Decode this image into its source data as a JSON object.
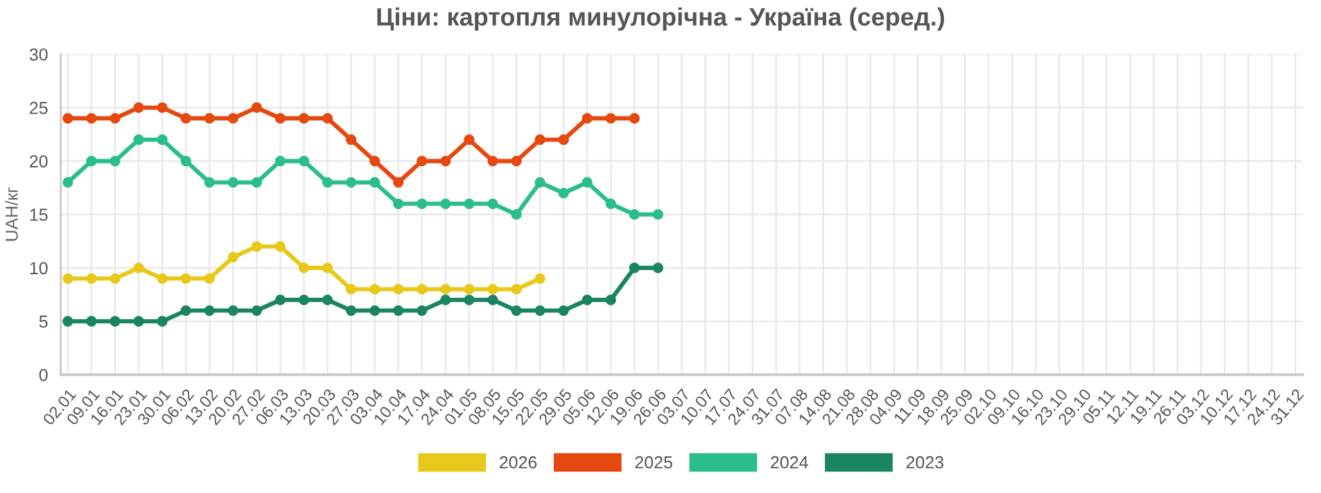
{
  "chart_data": {
    "type": "line",
    "title": "Ціни: картопля минулорічна - Україна (серед.)",
    "ylabel": "UAH/кг",
    "categories": [
      "02.01",
      "09.01",
      "16.01",
      "23.01",
      "30.01",
      "06.02",
      "13.02",
      "20.02",
      "27.02",
      "06.03",
      "13.03",
      "20.03",
      "27.03",
      "03.04",
      "10.04",
      "17.04",
      "24.04",
      "01.05",
      "08.05",
      "15.05",
      "22.05",
      "29.05",
      "05.06",
      "12.06",
      "19.06",
      "26.06",
      "03.07",
      "10.07",
      "17.07",
      "24.07",
      "31.07",
      "07.08",
      "14.08",
      "21.08",
      "28.08",
      "04.09",
      "11.09",
      "18.09",
      "25.09",
      "02.10",
      "09.10",
      "16.10",
      "23.10",
      "29.10",
      "05.11",
      "12.11",
      "19.11",
      "26.11",
      "03.12",
      "10.12",
      "17.12",
      "24.12",
      "31.12"
    ],
    "series": [
      {
        "name": "2026",
        "color": "#e8c81a",
        "values": [
          9,
          9,
          9,
          10,
          9,
          9,
          9,
          11,
          12,
          12,
          10,
          10,
          8,
          8,
          8,
          8,
          8,
          8,
          8,
          8,
          9,
          null,
          null,
          null,
          null,
          null,
          null,
          null,
          null,
          null,
          null,
          null,
          null,
          null,
          null,
          null,
          null,
          null,
          null,
          null,
          null,
          null,
          null,
          null,
          null,
          null,
          null,
          null,
          null,
          null,
          null,
          null,
          null
        ]
      },
      {
        "name": "2025",
        "color": "#e5490f",
        "values": [
          24,
          24,
          24,
          25,
          25,
          24,
          24,
          24,
          25,
          24,
          24,
          24,
          22,
          20,
          18,
          20,
          20,
          22,
          20,
          20,
          22,
          22,
          24,
          24,
          24,
          null,
          null,
          null,
          null,
          null,
          null,
          null,
          null,
          null,
          null,
          null,
          null,
          null,
          null,
          null,
          null,
          null,
          null,
          null,
          null,
          null,
          null,
          null,
          null,
          null,
          null,
          null,
          null
        ]
      },
      {
        "name": "2024",
        "color": "#2bbd8a",
        "values": [
          18,
          20,
          20,
          22,
          22,
          20,
          18,
          18,
          18,
          20,
          20,
          18,
          18,
          18,
          16,
          16,
          16,
          16,
          16,
          15,
          18,
          17,
          18,
          16,
          15,
          15,
          null,
          null,
          null,
          null,
          null,
          null,
          null,
          null,
          null,
          null,
          null,
          null,
          null,
          null,
          null,
          null,
          null,
          null,
          null,
          null,
          null,
          null,
          null,
          null,
          null,
          null,
          null
        ]
      },
      {
        "name": "2023",
        "color": "#1a8560",
        "values": [
          5,
          5,
          5,
          5,
          5,
          6,
          6,
          6,
          6,
          7,
          7,
          7,
          6,
          6,
          6,
          6,
          7,
          7,
          7,
          6,
          6,
          6,
          7,
          7,
          10,
          10,
          null,
          null,
          null,
          null,
          null,
          null,
          null,
          null,
          null,
          null,
          null,
          null,
          null,
          null,
          null,
          null,
          null,
          null,
          null,
          null,
          null,
          null,
          null,
          null,
          null,
          null,
          null
        ]
      }
    ],
    "ylim": [
      0,
      30
    ],
    "yticks": [
      0,
      5,
      10,
      15,
      20,
      25,
      30
    ],
    "grid": true,
    "legend": "bottom",
    "marker": "circle",
    "line_style": "solid"
  }
}
